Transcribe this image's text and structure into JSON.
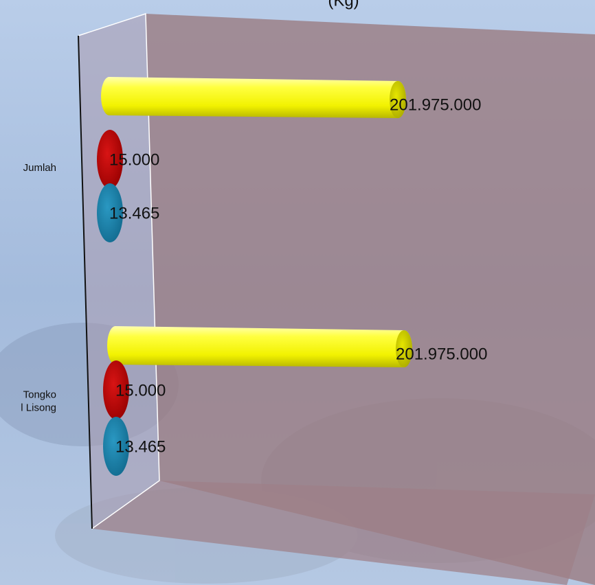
{
  "chart_data": {
    "type": "bar",
    "title": "(Kg)",
    "categories": [
      "Jumlah",
      "Tongko l Lisong"
    ],
    "category_lines": [
      [
        "Jumlah"
      ],
      [
        "Tongko",
        "l Lisong"
      ]
    ],
    "series": [
      {
        "color": "#ffff00",
        "values": [
          201975000,
          201975000
        ],
        "labels": [
          "201.975.000",
          "201.975.000"
        ]
      },
      {
        "color": "#c00000",
        "values": [
          15000,
          15000
        ],
        "labels": [
          "15.000",
          "15.000"
        ]
      },
      {
        "color": "#1a7fa8",
        "values": [
          13465,
          13465
        ],
        "labels": [
          "13.465",
          "13.465"
        ]
      }
    ],
    "orientation": "horizontal",
    "style": "3d-cylinder",
    "grid": false,
    "legend": "none"
  }
}
